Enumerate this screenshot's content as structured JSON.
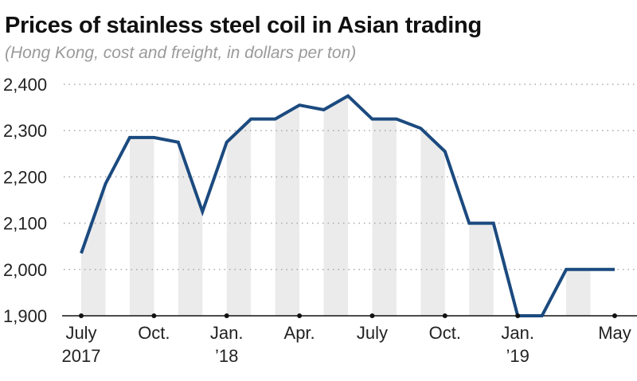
{
  "chart_data": {
    "type": "line",
    "title": "Prices of stainless steel coil in Asian trading",
    "subtitle": "(Hong Kong, cost and freight, in dollars per ton)",
    "xlabel": "",
    "ylabel": "",
    "ylim": [
      1900,
      2400
    ],
    "yticks": [
      "2,400",
      "2,300",
      "2,200",
      "2,100",
      "2,000",
      "1,900"
    ],
    "ytick_values": [
      2400,
      2300,
      2200,
      2100,
      2000,
      1900
    ],
    "grid": true,
    "x": [
      "Jul 2017",
      "Aug 2017",
      "Sep 2017",
      "Oct 2017",
      "Nov 2017",
      "Dec 2017",
      "Jan 2018",
      "Feb 2018",
      "Mar 2018",
      "Apr 2018",
      "May 2018",
      "Jun 2018",
      "Jul 2018",
      "Aug 2018",
      "Sep 2018",
      "Oct 2018",
      "Nov 2018",
      "Dec 2018",
      "Jan 2019",
      "Feb 2019",
      "Mar 2019",
      "Apr 2019",
      "May 2019"
    ],
    "series": [
      {
        "name": "Price",
        "color": "#1b4a7f",
        "values": [
          2035,
          2185,
          2285,
          2285,
          2275,
          2125,
          2275,
          2325,
          2325,
          2355,
          2345,
          2375,
          2325,
          2325,
          2305,
          2255,
          2100,
          2100,
          1900,
          1900,
          2000,
          2000,
          2000
        ]
      }
    ],
    "xtick_labels": [
      {
        "index": 0,
        "line1": "July",
        "line2": "2017"
      },
      {
        "index": 3,
        "line1": "Oct.",
        "line2": ""
      },
      {
        "index": 6,
        "line1": "Jan.",
        "line2": "’18"
      },
      {
        "index": 9,
        "line1": "Apr.",
        "line2": ""
      },
      {
        "index": 12,
        "line1": "July",
        "line2": ""
      },
      {
        "index": 15,
        "line1": "Oct.",
        "line2": ""
      },
      {
        "index": 18,
        "line1": "Jan.",
        "line2": "’19"
      },
      {
        "index": 22,
        "line1": "May",
        "line2": ""
      }
    ],
    "shade_color": "#ebebeb"
  }
}
